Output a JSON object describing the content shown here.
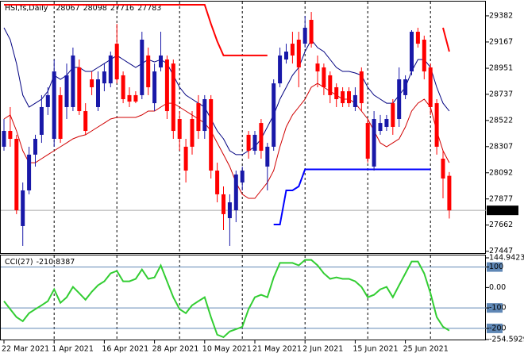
{
  "chart_data": [
    {
      "type": "candlestick",
      "title": "HSI,fs,Daily",
      "categories": [
        "22 Mar 2021",
        null,
        null,
        null,
        null,
        null,
        null,
        null,
        "1 Apr 2021",
        null,
        null,
        null,
        null,
        null,
        null,
        null,
        "16 Apr 2021",
        null,
        null,
        null,
        null,
        null,
        null,
        null,
        "28 Apr 2021",
        null,
        null,
        null,
        null,
        null,
        null,
        null,
        "10 May 2021",
        null,
        null,
        null,
        null,
        null,
        null,
        null,
        "21 May 2021",
        null,
        null,
        null,
        null,
        null,
        null,
        null,
        "2 Jun 2021",
        null,
        null,
        null,
        null,
        null,
        null,
        null,
        "15 Jun 2021",
        null,
        null,
        null,
        null,
        null,
        null,
        null,
        "25 Jun 2021",
        null,
        null,
        null,
        null,
        null,
        null,
        null
      ],
      "open": [
        28306,
        28436,
        28371,
        27654,
        27947,
        28241,
        28404,
        28632,
        28371,
        28730,
        28632,
        28632,
        28958,
        28599,
        28860,
        28632,
        28827,
        28827,
        29153,
        28893,
        28730,
        28730,
        28730,
        29056,
        28664,
        28958,
        29023,
        28990,
        28534,
        28306,
        28534,
        28664,
        28436,
        28697,
        28110,
        27915,
        27719,
        27784,
        28012,
        28404,
        28273,
        28501,
        28143,
        28306,
        28827,
        29023,
        29153,
        29186,
        29153,
        29349,
        28990,
        28958,
        28893,
        28795,
        28762,
        28762,
        28632,
        28925,
        28501,
        28143,
        28436,
        28469,
        28664,
        28534,
        28730,
        28925,
        29251,
        29186,
        28958,
        28664,
        28208,
        28067
      ],
      "high": [
        28534,
        28632,
        28404,
        28012,
        28306,
        28404,
        28730,
        28795,
        29023,
        28795,
        28990,
        29121,
        29023,
        28664,
        28925,
        28925,
        28990,
        29088,
        29316,
        28925,
        28795,
        28762,
        29251,
        29121,
        28990,
        29251,
        29056,
        29023,
        28599,
        28371,
        28599,
        28730,
        28730,
        28730,
        28175,
        27980,
        27915,
        28110,
        28143,
        28436,
        28436,
        28534,
        28338,
        28860,
        29121,
        29153,
        29251,
        29251,
        29382,
        29414,
        29056,
        28990,
        28925,
        28827,
        28795,
        28795,
        28795,
        28958,
        28534,
        28599,
        28567,
        28567,
        28697,
        28958,
        28893,
        29264,
        29284,
        29219,
        28990,
        28697,
        28273,
        28098
      ],
      "low": [
        28273,
        28306,
        27752,
        27491,
        27915,
        28143,
        28338,
        28567,
        28306,
        28338,
        28534,
        28599,
        28567,
        28404,
        28730,
        28599,
        28762,
        28795,
        28827,
        28664,
        28632,
        28664,
        28697,
        28730,
        28599,
        28925,
        28534,
        28371,
        28273,
        28012,
        28241,
        28371,
        28371,
        28045,
        27849,
        27621,
        27491,
        27686,
        27947,
        28208,
        28241,
        28208,
        27947,
        28273,
        28795,
        28990,
        28990,
        28795,
        29121,
        29121,
        28795,
        28730,
        28664,
        28632,
        28632,
        28632,
        28599,
        28599,
        28175,
        28110,
        28404,
        28436,
        28404,
        28469,
        28697,
        28893,
        29121,
        28860,
        28567,
        28241,
        27882,
        27716
      ],
      "close": [
        28436,
        28371,
        27784,
        27947,
        28241,
        28371,
        28632,
        28730,
        28925,
        28371,
        28893,
        29056,
        28599,
        28436,
        28795,
        28860,
        28925,
        29056,
        28860,
        28697,
        28677,
        28677,
        29186,
        28795,
        28925,
        29056,
        28599,
        28436,
        28371,
        28110,
        28306,
        28436,
        28697,
        28110,
        27915,
        27752,
        27849,
        28078,
        28110,
        28273,
        28404,
        28273,
        28306,
        28827,
        29056,
        29088,
        29056,
        28958,
        29284,
        29153,
        28925,
        28795,
        28730,
        28697,
        28664,
        28664,
        28730,
        28664,
        28208,
        28534,
        28501,
        28534,
        28469,
        28860,
        28860,
        29251,
        29153,
        28925,
        28632,
        28306,
        28045,
        27783
      ],
      "up_color": "#1818a8",
      "down_color": "#ff0000",
      "lines": [
        {
          "color": "#000080",
          "width": 1,
          "values": [
            29284,
            29186,
            28990,
            28730,
            28632,
            28664,
            28697,
            28762,
            28893,
            28860,
            28893,
            28958,
            28958,
            28925,
            28925,
            28958,
            28990,
            29023,
            29056,
            29023,
            28990,
            28958,
            28990,
            29023,
            29003,
            29023,
            28990,
            28893,
            28795,
            28730,
            28697,
            28664,
            28632,
            28534,
            28436,
            28371,
            28273,
            28241,
            28241,
            28273,
            28306,
            28371,
            28469,
            28567,
            28697,
            28795,
            28893,
            28958,
            29088,
            29186,
            29121,
            29088,
            29023,
            28958,
            28925,
            28925,
            28912,
            28893,
            28795,
            28730,
            28697,
            28664,
            28664,
            28730,
            28795,
            28925,
            29023,
            29023,
            28958,
            28795,
            28664,
            28599
          ]
        },
        {
          "color": "#d00000",
          "width": 1,
          "values": [
            28534,
            28567,
            28436,
            28273,
            28175,
            28175,
            28208,
            28241,
            28273,
            28306,
            28338,
            28371,
            28391,
            28404,
            28436,
            28469,
            28501,
            28534,
            28547,
            28547,
            28547,
            28547,
            28567,
            28599,
            28599,
            28632,
            28664,
            28664,
            28632,
            28599,
            28567,
            28534,
            28501,
            28436,
            28338,
            28241,
            28143,
            28012,
            27915,
            27882,
            27882,
            27947,
            28012,
            28110,
            28306,
            28469,
            28567,
            28632,
            28697,
            28795,
            28827,
            28795,
            28762,
            28730,
            28697,
            28697,
            28664,
            28599,
            28534,
            28436,
            28338,
            28306,
            28338,
            28371,
            28469,
            28599,
            28664,
            28697,
            28632,
            28436,
            28273,
            28175
          ]
        },
        {
          "color": "#ff0000",
          "width": 2,
          "values": [
            29473,
            29473,
            29473,
            29473,
            29473,
            29473,
            29473,
            29473,
            29473,
            29473,
            29473,
            29473,
            29473,
            29473,
            29473,
            29473,
            29473,
            29473,
            29473,
            29473,
            29473,
            29473,
            29473,
            29473,
            29473,
            29473,
            29473,
            29473,
            29473,
            29473,
            29473,
            29473,
            29473,
            29316,
            29173,
            29056,
            29056,
            29056,
            29056,
            29056,
            29056,
            29056,
            29056,
            null,
            null,
            null,
            null,
            null,
            null,
            null,
            null,
            null,
            null,
            null,
            null,
            null,
            null,
            null,
            null,
            null,
            null,
            null,
            null,
            null,
            null,
            null,
            null,
            null,
            null,
            null,
            29284,
            29088
          ]
        },
        {
          "color": "#0000ff",
          "width": 2,
          "values": [
            null,
            null,
            null,
            null,
            null,
            null,
            null,
            null,
            null,
            null,
            null,
            null,
            null,
            null,
            null,
            null,
            null,
            null,
            null,
            null,
            null,
            null,
            null,
            null,
            null,
            null,
            null,
            null,
            null,
            null,
            null,
            null,
            null,
            null,
            null,
            null,
            null,
            null,
            null,
            null,
            null,
            null,
            null,
            27667,
            27667,
            27947,
            27947,
            27980,
            28120,
            28120,
            28120,
            28120,
            28120,
            28120,
            28120,
            28120,
            28120,
            28120,
            28120,
            28120,
            28120,
            28120,
            28120,
            28120,
            28120,
            28120,
            28120,
            28120,
            28120,
            null,
            null,
            null
          ]
        }
      ],
      "ylim": [
        27432,
        29486
      ],
      "yticks": [
        29382,
        29167,
        28951,
        28737,
        28522,
        28307,
        28092,
        27877,
        27662,
        27447
      ]
    },
    {
      "type": "line",
      "title": "CCI(27)",
      "series": [
        {
          "color": "#32cd32",
          "values": [
            -67,
            -106,
            -145,
            -165,
            -126,
            -106,
            -87,
            -67,
            -9,
            -75,
            -48,
            3,
            -28,
            -60,
            -21,
            11,
            30,
            69,
            81,
            30,
            30,
            42,
            88,
            42,
            49,
            108,
            30,
            -48,
            -106,
            -126,
            -87,
            -67,
            -48,
            -145,
            -231,
            -243,
            -215,
            -204,
            -192,
            -106,
            -48,
            -36,
            -48,
            49,
            120,
            120,
            120,
            108,
            135,
            135,
            108,
            69,
            42,
            49,
            42,
            42,
            30,
            3,
            -48,
            -36,
            -9,
            3,
            -48,
            11,
            69,
            127,
            127,
            69,
            -28,
            -145,
            -192,
            -210.8387
          ]
        }
      ],
      "ylim": [
        -254.5929,
        144.9423
      ],
      "yticks": [
        144.9423,
        100,
        {
          "value": 0,
          "label": "0.00"
        },
        -100,
        -200,
        -254.5929
      ],
      "levels": [
        100,
        -100,
        -200
      ],
      "level_color": "#5f87b5"
    }
  ]
}
